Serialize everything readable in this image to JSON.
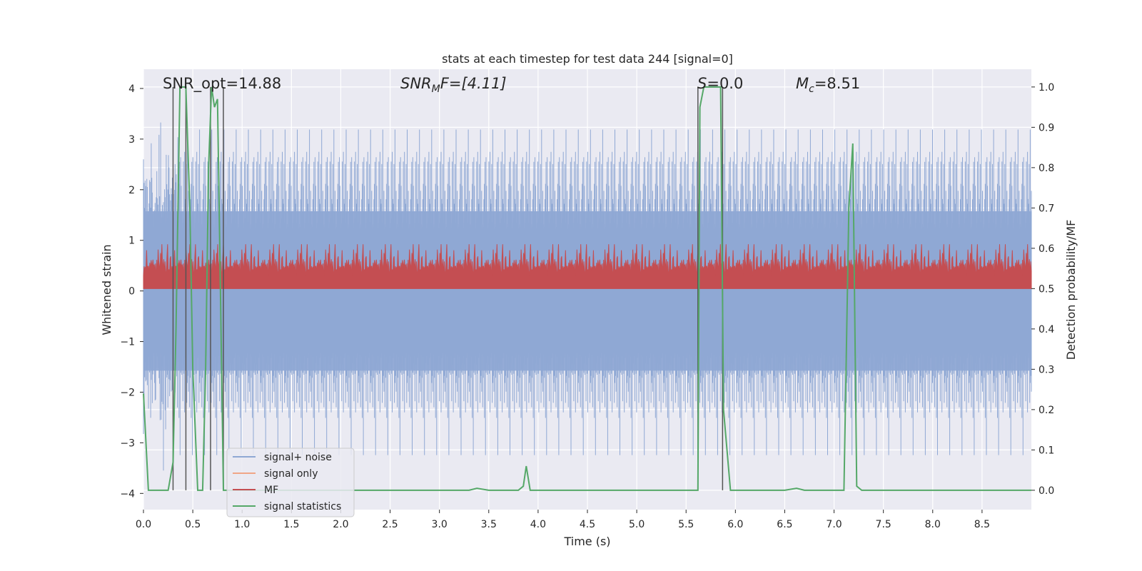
{
  "chart_data": {
    "type": "line",
    "title": "stats at each timestep for test data 244 [signal=0]",
    "xlabel": "Time (s)",
    "ylabel_left": "Whitened strain",
    "ylabel_right": "Detection probability/MF",
    "xlim": [
      0.0,
      9.0
    ],
    "ylim_left": [
      -4.32,
      4.38
    ],
    "ylim_right": [
      -0.048,
      1.044
    ],
    "x_ticks": [
      "0.0",
      "0.5",
      "1.0",
      "1.5",
      "2.0",
      "2.5",
      "3.0",
      "3.5",
      "4.0",
      "4.5",
      "5.0",
      "5.5",
      "6.0",
      "6.5",
      "7.0",
      "7.5",
      "8.0",
      "8.5"
    ],
    "y_ticks_left": [
      "4",
      "3",
      "2",
      "1",
      "0",
      "−1",
      "−2",
      "−3",
      "−4"
    ],
    "y_ticks_right": [
      "1.0",
      "0.9",
      "0.8",
      "0.7",
      "0.6",
      "0.5",
      "0.4",
      "0.3",
      "0.2",
      "0.1",
      "0.0"
    ],
    "annotations": {
      "snr_opt": "SNR_opt=14.88",
      "snr_mf_main": "SNR",
      "snr_mf_sub": "M",
      "snr_mf_rest": "F=[4.11]",
      "s_main": "S",
      "s_rest": "=0.0",
      "mc_main": "M",
      "mc_sub": "c",
      "mc_rest": "=8.51"
    },
    "series": [
      {
        "name": "signal+ noise",
        "color": "#8fa8d4",
        "axis": "left",
        "amplitude_envelope": [
          -2.5,
          2.5
        ],
        "peak_range": [
          -3.6,
          4.0
        ]
      },
      {
        "name": "signal only",
        "color": "#f0a686",
        "axis": "left",
        "values": []
      },
      {
        "name": "MF",
        "color": "#c44e52",
        "axis": "right",
        "band": [
          0.5,
          0.6
        ]
      },
      {
        "name": "signal statistics",
        "color": "#55a868",
        "axis": "right",
        "x": [
          0.0,
          0.05,
          0.1,
          0.25,
          0.3,
          0.33,
          0.37,
          0.4,
          0.43,
          0.47,
          0.5,
          0.55,
          0.6,
          0.63,
          0.66,
          0.69,
          0.72,
          0.75,
          0.78,
          0.81,
          0.84,
          0.9,
          1.0,
          1.5,
          2.0,
          2.5,
          3.0,
          3.3,
          3.38,
          3.5,
          3.8,
          3.85,
          3.88,
          3.92,
          4.0,
          4.5,
          5.0,
          5.5,
          5.62,
          5.64,
          5.68,
          5.75,
          5.85,
          5.88,
          5.95,
          6.0,
          6.5,
          6.62,
          6.7,
          7.0,
          7.1,
          7.15,
          7.19,
          7.23,
          7.28,
          7.35,
          8.0,
          8.5,
          9.0
        ],
        "y": [
          0.24,
          0.0,
          0.0,
          0.0,
          0.07,
          0.4,
          1.0,
          1.0,
          1.0,
          0.7,
          0.3,
          0.0,
          0.0,
          0.3,
          0.8,
          1.0,
          0.95,
          0.97,
          0.5,
          0.0,
          0.0,
          0.0,
          0.0,
          0.0,
          0.0,
          0.0,
          0.0,
          0.0,
          0.005,
          0.0,
          0.0,
          0.01,
          0.06,
          0.0,
          0.0,
          0.0,
          0.0,
          0.0,
          0.0,
          0.95,
          1.0,
          1.0,
          1.0,
          0.2,
          0.0,
          0.0,
          0.0,
          0.005,
          0.0,
          0.0,
          0.0,
          0.7,
          0.86,
          0.01,
          0.0,
          0.0,
          0.0,
          0.0,
          0.0
        ]
      }
    ],
    "vertical_markers": [
      0.3,
      0.43,
      0.68,
      0.81,
      5.62,
      5.87
    ],
    "legend": {
      "position": "lower-left",
      "entries": [
        "signal+ noise",
        "signal only",
        "MF",
        "signal statistics"
      ]
    }
  }
}
